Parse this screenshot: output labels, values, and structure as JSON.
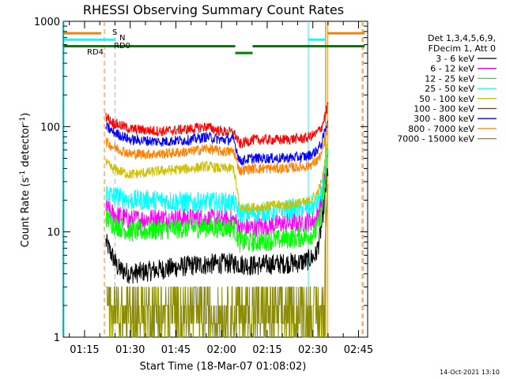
{
  "chart_data": {
    "type": "line",
    "title": "RHESSI Observing Summary Count Rates",
    "xlabel": "Start Time (18-Mar-07 01:08:02)",
    "ylabel_main": "Count Rate (s",
    "ylabel_sup1": "-1",
    "ylabel_mid": " detector",
    "ylabel_sup2": "-1",
    "ylabel_end": ")",
    "yscale": "log",
    "ylim": [
      1,
      1000
    ],
    "xlim_minutes": [
      68,
      168
    ],
    "x_ticks": [
      {
        "t": 75,
        "label": "01:15"
      },
      {
        "t": 90,
        "label": "01:30"
      },
      {
        "t": 105,
        "label": "01:45"
      },
      {
        "t": 120,
        "label": "02:00"
      },
      {
        "t": 135,
        "label": "02:15"
      },
      {
        "t": 150,
        "label": "02:30"
      },
      {
        "t": 165,
        "label": "02:45"
      }
    ],
    "y_ticks": [
      {
        "v": 1,
        "label": "1"
      },
      {
        "v": 10,
        "label": "10"
      },
      {
        "v": 100,
        "label": "100"
      },
      {
        "v": 1000,
        "label": "1000"
      }
    ],
    "legend": {
      "position": "right",
      "header1": "Det 1,3,4,5,6,9,",
      "header2": "FDecim 1, Att 0"
    },
    "series": [
      {
        "name": "3 - 6 keV",
        "color": "#000000",
        "x": [
          82,
          84,
          86,
          90,
          100,
          110,
          120,
          125,
          130,
          140,
          145,
          148,
          151,
          152,
          153,
          155
        ],
        "y": [
          8,
          6,
          4.5,
          4,
          4.4,
          4.8,
          5,
          5,
          4.8,
          5,
          5.1,
          5.3,
          6,
          8,
          12,
          40
        ]
      },
      {
        "name": "6 - 12 keV",
        "color": "#ff00ff",
        "x": [
          82,
          84,
          90,
          100,
          110,
          120,
          124,
          126,
          130,
          140,
          148,
          151,
          153,
          155
        ],
        "y": [
          17,
          15,
          13,
          13.5,
          13.5,
          13,
          13,
          11,
          11,
          12,
          12.5,
          13,
          20,
          60
        ]
      },
      {
        "name": "12 - 25 keV",
        "color": "#00ff00",
        "x": [
          82,
          84,
          90,
          100,
          110,
          120,
          124,
          126,
          130,
          140,
          148,
          151,
          153,
          155
        ],
        "y": [
          14,
          12,
          10,
          10.5,
          11,
          11,
          11,
          8,
          8,
          8.5,
          9,
          10,
          16,
          55
        ]
      },
      {
        "name": "25 - 50 keV",
        "color": "#00ffff",
        "x": [
          82,
          84,
          90,
          100,
          110,
          120,
          124,
          126,
          130,
          140,
          148,
          151,
          153,
          155
        ],
        "y": [
          24,
          22,
          20,
          20,
          19,
          19,
          19,
          15,
          15,
          16,
          17,
          18,
          24,
          70
        ]
      },
      {
        "name": "50 - 100 keV",
        "color": "#ccc000",
        "x": [
          82,
          84,
          90,
          100,
          110,
          115,
          120,
          124,
          126,
          130,
          140,
          148,
          151,
          153,
          155
        ],
        "y": [
          45,
          40,
          35,
          38,
          40,
          42,
          40,
          40,
          17,
          17,
          18,
          19,
          22,
          30,
          75
        ]
      },
      {
        "name": "100 - 300 keV",
        "color": "#ff0000",
        "x": [
          82,
          84,
          90,
          100,
          110,
          115,
          120,
          124,
          126,
          130,
          140,
          148,
          151,
          153,
          155
        ],
        "y": [
          125,
          110,
          95,
          90,
          95,
          100,
          90,
          88,
          68,
          75,
          75,
          78,
          85,
          100,
          160
        ]
      },
      {
        "name": "300 - 800 keV",
        "color": "#0000ff",
        "x": [
          82,
          84,
          90,
          100,
          110,
          115,
          120,
          124,
          126,
          130,
          140,
          148,
          151,
          153,
          155
        ],
        "y": [
          100,
          90,
          75,
          72,
          75,
          80,
          75,
          75,
          47,
          50,
          50,
          52,
          58,
          70,
          120
        ]
      },
      {
        "name": "800 - 7000 keV",
        "color": "#ff8000",
        "x": [
          82,
          84,
          90,
          100,
          110,
          115,
          120,
          124,
          126,
          130,
          140,
          148,
          151,
          153,
          155
        ],
        "y": [
          72,
          65,
          55,
          55,
          58,
          62,
          58,
          58,
          38,
          40,
          40,
          42,
          46,
          56,
          100
        ]
      },
      {
        "name": "7000 - 15000 keV",
        "color": "#8c8c00",
        "x": [
          82,
          84,
          90,
          100,
          110,
          120,
          125,
          130,
          140,
          148,
          151,
          152,
          153,
          155
        ],
        "y": [
          2.5,
          1.8,
          1.3,
          1.4,
          1.4,
          1.3,
          1.5,
          1.5,
          1.4,
          1.3,
          1.5,
          1.2,
          2,
          30
        ]
      }
    ],
    "vertical_lines": [
      {
        "t": 68.2,
        "color": "#00ffff",
        "style": "solid"
      },
      {
        "t": 81.5,
        "color": "#ff8000",
        "style": "dashed"
      },
      {
        "t": 85.0,
        "color": "#00ffff",
        "style": "dashed"
      },
      {
        "t": 148.5,
        "color": "#00ffff",
        "style": "solid"
      },
      {
        "t": 154.8,
        "color": "#ff8000",
        "style": "solid"
      },
      {
        "t": 154.2,
        "color": "#8c8c00",
        "style": "solid"
      },
      {
        "t": 166.2,
        "color": "#ff8000",
        "style": "dashed"
      },
      {
        "t": 166.6,
        "color": "#00ffff",
        "style": "dashed"
      }
    ],
    "flags": [
      {
        "label": "S",
        "color": "#ff8000",
        "v": 770,
        "segments": [
          [
            68.2,
            80.5
          ],
          [
            154.8,
            167
          ]
        ]
      },
      {
        "label": "N",
        "color": "#00ffff",
        "v": 670,
        "segments": [
          [
            68.2,
            85.0
          ],
          [
            148.5,
            154.2
          ]
        ]
      },
      {
        "label": "RD0",
        "color": "#008000",
        "v": 580,
        "segments": [
          [
            68.2,
            124.5
          ],
          [
            130.2,
            167
          ]
        ]
      },
      {
        "label": "RD4",
        "color": "#008000",
        "v": 500,
        "segments": [
          [
            124.5,
            130.2
          ]
        ]
      }
    ],
    "timestamp": "14-Oct-2021 13:10"
  }
}
